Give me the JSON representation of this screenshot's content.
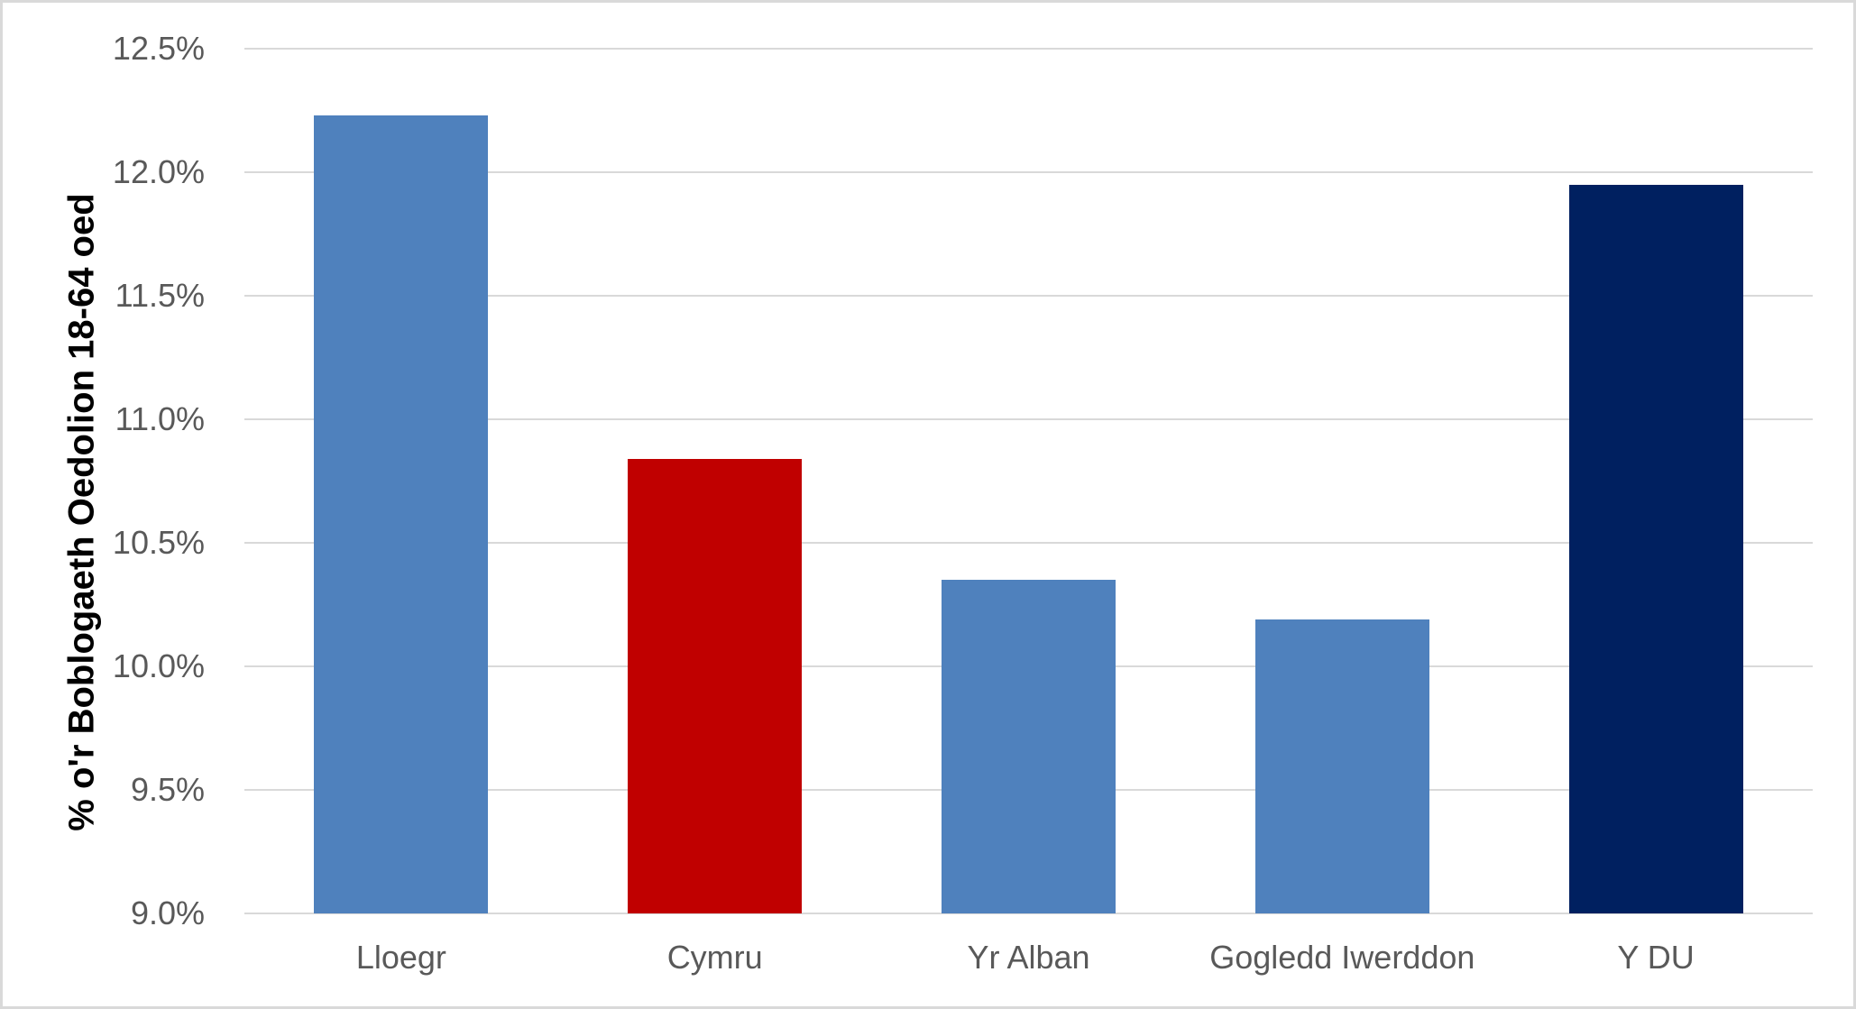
{
  "frame": {
    "background_color": "#ffffff",
    "border_color": "#d9d9d9"
  },
  "chart_data": {
    "type": "bar",
    "title": "",
    "xlabel": "",
    "ylabel": "% o'r Boblogaeth Oedolion 18-64 oed",
    "categories": [
      "Lloegr",
      "Cymru",
      "Yr Alban",
      "Gogledd Iwerddon",
      "Y DU"
    ],
    "values": [
      12.23,
      10.84,
      10.35,
      10.19,
      11.95
    ],
    "bar_colors": [
      "#4F81BD",
      "#C00000",
      "#4F81BD",
      "#4F81BD",
      "#002060"
    ],
    "ylim": [
      9.0,
      12.5
    ],
    "ytick_step": 0.5,
    "ytick_labels": [
      "9.0%",
      "9.5%",
      "10.0%",
      "10.5%",
      "11.0%",
      "11.5%",
      "12.0%",
      "12.5%"
    ],
    "grid": true,
    "gridline_color": "#d9d9d9",
    "tick_label_color": "#595959",
    "axis_title_color": "#000000",
    "legend_position": "none"
  }
}
